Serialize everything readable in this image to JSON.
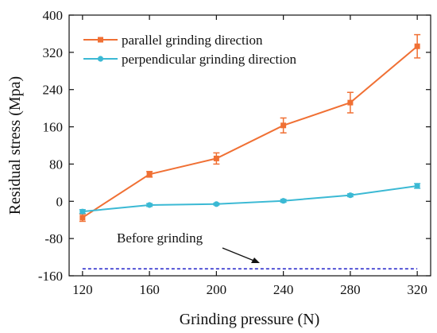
{
  "chart_data": {
    "type": "line",
    "xlabel": "Grinding pressure (N)",
    "ylabel": "Residual stress (Mpa)",
    "x": [
      120,
      160,
      200,
      240,
      280,
      320
    ],
    "x_ticks": [
      120,
      160,
      200,
      240,
      280,
      320
    ],
    "y_ticks": [
      -160,
      -80,
      0,
      80,
      160,
      240,
      320,
      400
    ],
    "xlim": [
      112,
      328
    ],
    "ylim": [
      -160,
      400
    ],
    "grid": false,
    "legend_position": "top-left",
    "series": [
      {
        "name": "parallel grinding direction",
        "color": "#f07034",
        "marker": "square",
        "values": [
          -35,
          58,
          92,
          163,
          212,
          333
        ],
        "errors": [
          8,
          6,
          12,
          16,
          22,
          25
        ]
      },
      {
        "name": "perpendicular grinding direction",
        "color": "#3bb9d4",
        "marker": "circle",
        "values": [
          -22,
          -8,
          -6,
          1,
          13,
          33
        ],
        "errors": [
          4,
          3,
          2,
          3,
          3,
          5
        ]
      }
    ],
    "baseline": {
      "label": "Before grinding",
      "value": -145,
      "color": "#2020c8",
      "style": "dashed"
    }
  }
}
